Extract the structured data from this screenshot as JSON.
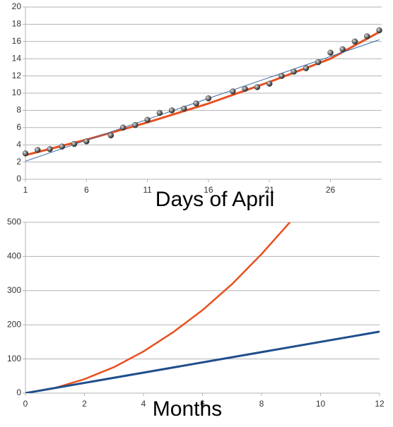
{
  "chart_data": [
    {
      "type": "scatter",
      "x_label": "Days of April",
      "xlim": [
        1,
        30.2
      ],
      "ylim": [
        0,
        20
      ],
      "xticks": [
        1,
        6,
        11,
        16,
        21,
        26
      ],
      "yticks": [
        0,
        2,
        4,
        6,
        8,
        10,
        12,
        14,
        16,
        18,
        20
      ],
      "grid": true,
      "series": [
        {
          "mode": "markers",
          "color": "#444444",
          "x": [
            1,
            2,
            3,
            4,
            5,
            6,
            8,
            9,
            10,
            11,
            12,
            13,
            14,
            15,
            16,
            18,
            19,
            20,
            21,
            22,
            23,
            24,
            25,
            26,
            27,
            28,
            29,
            30
          ],
          "values": [
            3.0,
            3.4,
            3.5,
            3.8,
            4.1,
            4.4,
            5.1,
            6.0,
            6.3,
            6.9,
            7.7,
            8.0,
            8.2,
            8.8,
            9.4,
            10.2,
            10.5,
            10.7,
            11.1,
            12.0,
            12.5,
            12.9,
            13.6,
            14.7,
            15.1,
            16.0,
            16.6,
            17.3
          ]
        },
        {
          "mode": "line",
          "color": "#e8501f",
          "line_width": 3,
          "x": [
            1,
            6,
            11,
            16,
            21,
            26,
            30
          ],
          "values": [
            2.8,
            4.6,
            6.6,
            8.8,
            11.3,
            14.0,
            17.1
          ]
        },
        {
          "mode": "line",
          "color": "#3a6aa6",
          "line_width": 1,
          "x": [
            1,
            30
          ],
          "values": [
            2.1,
            16.2
          ]
        }
      ]
    },
    {
      "type": "line",
      "x_label": "Months",
      "xlim": [
        0,
        12
      ],
      "ylim": [
        0,
        500
      ],
      "xticks": [
        0,
        2,
        4,
        6,
        8,
        10,
        12
      ],
      "yticks": [
        0,
        100,
        200,
        300,
        400,
        500
      ],
      "grid": true,
      "series": [
        {
          "mode": "line",
          "color": "#e8501f",
          "line_width": 2.5,
          "x": [
            0,
            1,
            2,
            3,
            4,
            5,
            6,
            7,
            8,
            9
          ],
          "values": [
            0,
            15,
            41,
            76,
            122,
            178,
            243,
            319,
            407,
            504
          ]
        },
        {
          "mode": "line",
          "color": "#1f4e8c",
          "line_width": 3,
          "x": [
            0,
            12
          ],
          "values": [
            0,
            180
          ]
        }
      ]
    }
  ]
}
